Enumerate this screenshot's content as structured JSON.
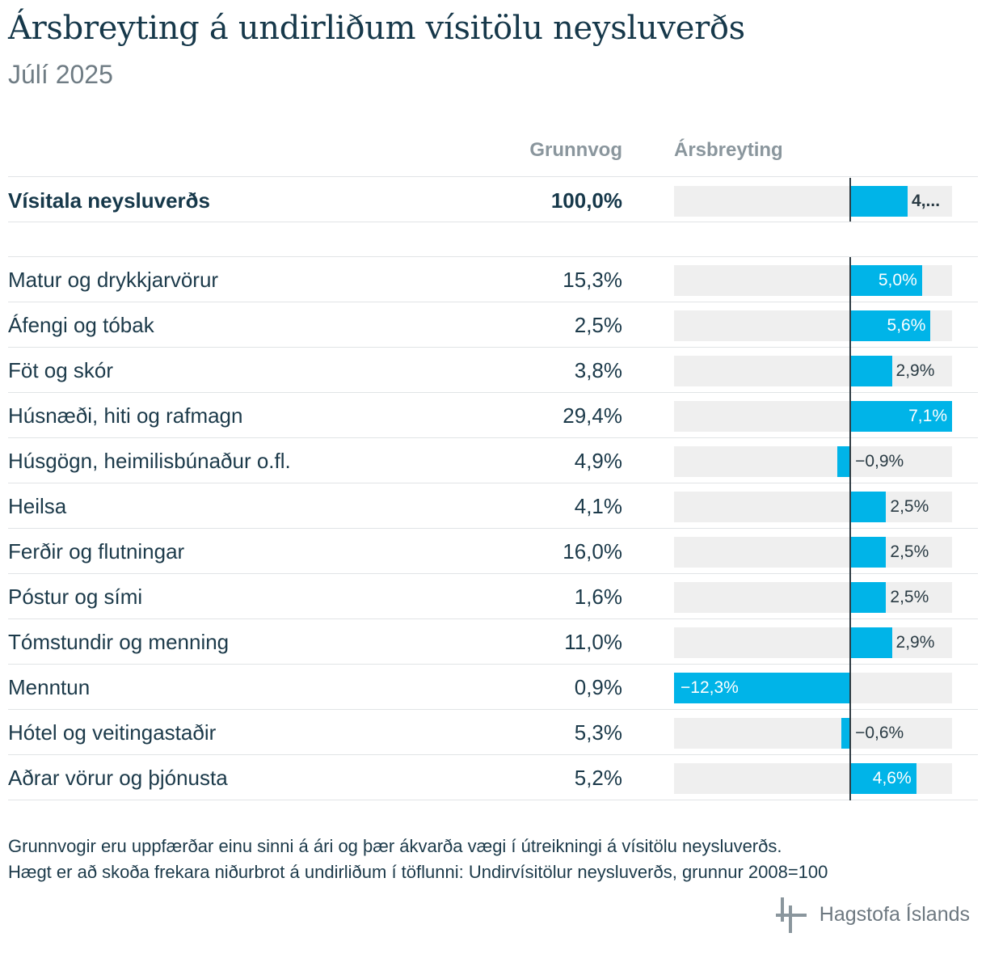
{
  "title": "Ársbreyting á undirliðum vísitölu neysluverðs",
  "subtitle": "Júlí 2025",
  "columns": {
    "weight": "Grunnvog",
    "change": "Ársbreyting"
  },
  "chart_data": {
    "type": "bar",
    "orientation": "horizontal",
    "xlim": [
      -12.3,
      7.1
    ],
    "total": {
      "category": "Vísitala neysluverðs",
      "weight": "100,0%",
      "value": 4.0,
      "label": "4,..."
    },
    "categories": [
      "Matur og drykkjarvörur",
      "Áfengi og tóbak",
      "Föt og skór",
      "Húsnæði, hiti og rafmagn",
      "Húsgögn, heimilisbúnaður o.fl.",
      "Heilsa",
      "Ferðir og flutningar",
      "Póstur og sími",
      "Tómstundir og menning",
      "Menntun",
      "Hótel og veitingastaðir",
      "Aðrar vörur og þjónusta"
    ],
    "weights": [
      "15,3%",
      "2,5%",
      "3,8%",
      "29,4%",
      "4,9%",
      "4,1%",
      "16,0%",
      "1,6%",
      "11,0%",
      "0,9%",
      "5,3%",
      "5,2%"
    ],
    "values": [
      5.0,
      5.6,
      2.9,
      7.1,
      -0.9,
      2.5,
      2.5,
      2.5,
      2.9,
      -12.3,
      -0.6,
      4.6
    ],
    "value_labels": [
      "5,0%",
      "5,6%",
      "2,9%",
      "7,1%",
      "−0,9%",
      "2,5%",
      "2,5%",
      "2,5%",
      "2,9%",
      "−12,3%",
      "−0,6%",
      "4,6%"
    ],
    "bar_color": "#00b4e8",
    "track_color": "#efefef"
  },
  "notes": [
    "Grunnvogir eru uppfærðar einu sinni á ári og þær ákvarða vægi í útreikningi á vísitölu neysluverðs.",
    "Hægt er að skoða frekara niðurbrot á undirliðum í töflunni: Undirvísitölur neysluverðs, grunnur 2008=100"
  ],
  "logo": {
    "text": "Hagstofa Íslands",
    "icon": "hagstofa-logo-icon"
  }
}
